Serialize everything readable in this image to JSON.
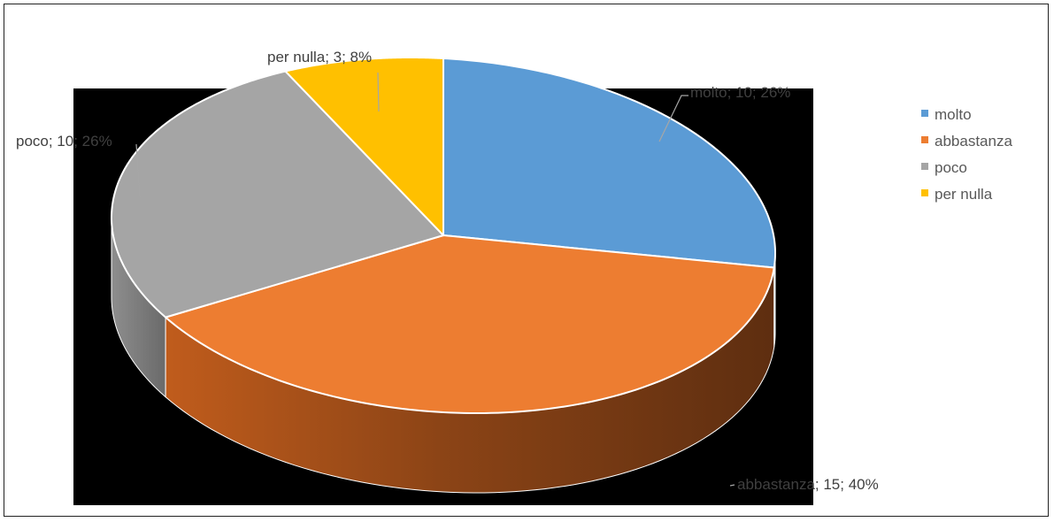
{
  "chart_data": {
    "type": "pie",
    "style": "3d",
    "title": "",
    "categories": [
      "molto",
      "abbastanza",
      "poco",
      "per nulla"
    ],
    "values": [
      10,
      15,
      10,
      3
    ],
    "percents": [
      26,
      40,
      26,
      8
    ],
    "colors": [
      "#5B9BD5",
      "#ED7D31",
      "#A5A5A5",
      "#FFC000"
    ],
    "data_labels": [
      "molto; 10; 26%",
      "abbastanza; 15; 40%",
      "poco; 10; 26%",
      "per nulla; 3; 8%"
    ],
    "legend": {
      "position": "right",
      "entries": [
        "molto",
        "abbastanza",
        "poco",
        "per nulla"
      ]
    },
    "plot_background": "#000000"
  }
}
